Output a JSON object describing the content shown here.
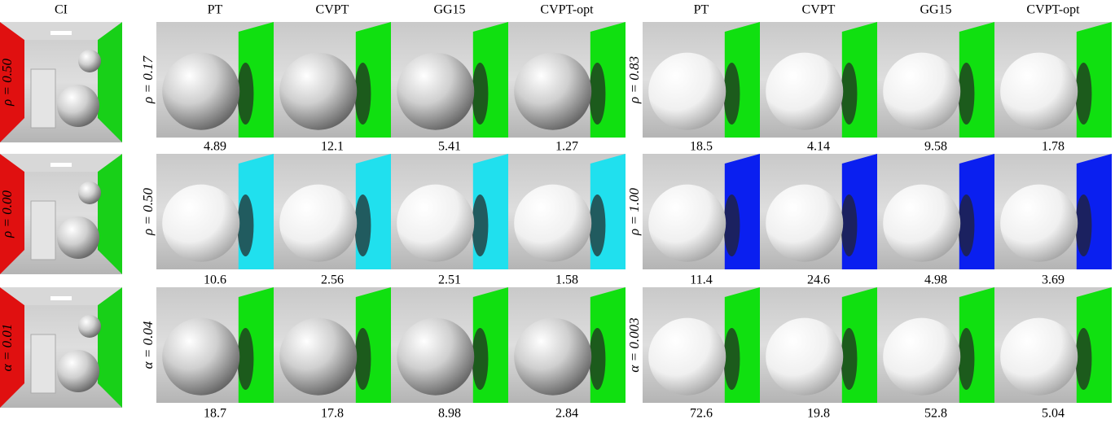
{
  "ci": {
    "header": "CI",
    "row_labels": [
      "ρ = 0.50",
      "ρ = 0.00",
      "α = 0.01"
    ]
  },
  "groups": [
    {
      "headers": [
        "PT",
        "CVPT",
        "GG15",
        "CVPT-opt"
      ],
      "row_labels": [
        "ρ = 0.17",
        "ρ = 0.50",
        "α = 0.04"
      ],
      "rows": [
        [
          4.89,
          12.1,
          5.41,
          1.27
        ],
        [
          10.6,
          2.56,
          2.51,
          1.58
        ],
        [
          18.7,
          17.8,
          8.98,
          2.84
        ]
      ]
    },
    {
      "headers": [
        "PT",
        "CVPT",
        "GG15",
        "CVPT-opt"
      ],
      "row_labels": [
        "ρ = 0.83",
        "ρ = 1.00",
        "α = 0.003"
      ],
      "rows": [
        [
          18.5,
          4.14,
          9.58,
          1.78
        ],
        [
          11.4,
          24.6,
          4.98,
          3.69
        ],
        [
          72.6,
          19.8,
          52.8,
          5.04
        ]
      ]
    }
  ]
}
